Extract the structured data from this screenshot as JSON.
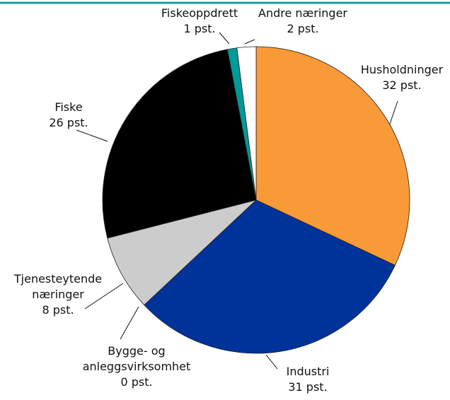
{
  "chart_data": {
    "type": "pie",
    "categories": [
      "Husholdninger",
      "Industri",
      "Bygge- og anleggsvirksomhet",
      "Tjenesteytende næringer",
      "Fiske",
      "Fiskeoppdrett",
      "Andre næringer"
    ],
    "values": [
      32,
      31,
      0,
      8,
      26,
      1,
      2
    ],
    "value_labels": [
      "32 pst.",
      "31 pst.",
      "0 pst.",
      "8 pst.",
      "26 pst.",
      "1 pst.",
      "2 pst."
    ],
    "colors": [
      "#f99a38",
      "#003399",
      "#ffffff",
      "#cccccc",
      "#000000",
      "#009a9a",
      "#ffffff"
    ]
  }
}
